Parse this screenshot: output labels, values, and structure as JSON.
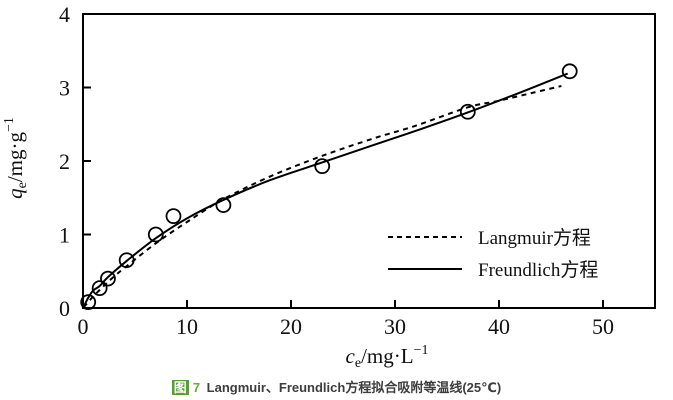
{
  "chart": {
    "xlabel": {
      "var": "c",
      "sub": "e",
      "unit": "/mg·L",
      "sup": "−1"
    },
    "ylabel": {
      "var": "q",
      "sub": "e",
      "unit": "/mg·g",
      "sup": "−1"
    }
  },
  "caption": {
    "fig_label": "图",
    "fig_num": "7",
    "text": " Langmuir、Freundlich方程拟合吸附等温线(25℃)",
    "highlight_color": "#55a02e"
  },
  "chart_data": {
    "type": "scatter",
    "title": "",
    "xlabel": "ce/mg·L−1",
    "ylabel": "qe/mg·g−1",
    "xlim": [
      0,
      55
    ],
    "ylim": [
      0,
      4
    ],
    "xticks": [
      0,
      10,
      20,
      30,
      40,
      50
    ],
    "yticks": [
      0,
      1,
      2,
      3,
      4
    ],
    "grid": false,
    "legend_position": "inside-right-lower",
    "point_color": "#000000",
    "line_color": "#000000",
    "points": [
      [
        0.5,
        0.08
      ],
      [
        1.6,
        0.27
      ],
      [
        2.4,
        0.4
      ],
      [
        4.2,
        0.65
      ],
      [
        7.0,
        1.0
      ],
      [
        8.7,
        1.25
      ],
      [
        13.5,
        1.4
      ],
      [
        23.0,
        1.93
      ],
      [
        37.0,
        2.67
      ],
      [
        46.8,
        3.22
      ]
    ],
    "series": [
      {
        "name": "Langmuir方程",
        "style": "dashed",
        "curve_points": [
          [
            0.05,
            0.01
          ],
          [
            0.5,
            0.08
          ],
          [
            1,
            0.16
          ],
          [
            2,
            0.3
          ],
          [
            3,
            0.43
          ],
          [
            4.2,
            0.57
          ],
          [
            7,
            0.88
          ],
          [
            10,
            1.17
          ],
          [
            13.5,
            1.48
          ],
          [
            18,
            1.79
          ],
          [
            23,
            2.07
          ],
          [
            28,
            2.31
          ],
          [
            32,
            2.48
          ],
          [
            37,
            2.73
          ],
          [
            40,
            2.82
          ],
          [
            43,
            2.92
          ],
          [
            46,
            3.02
          ]
        ]
      },
      {
        "name": "Freundlich方程",
        "style": "solid",
        "curve_points": [
          [
            0.05,
            0.01
          ],
          [
            0.5,
            0.14
          ],
          [
            1,
            0.24
          ],
          [
            1.6,
            0.3
          ],
          [
            2.4,
            0.42
          ],
          [
            4.2,
            0.64
          ],
          [
            7,
            0.95
          ],
          [
            10,
            1.22
          ],
          [
            13.5,
            1.47
          ],
          [
            18,
            1.74
          ],
          [
            23,
            1.98
          ],
          [
            28,
            2.22
          ],
          [
            32,
            2.41
          ],
          [
            37,
            2.66
          ],
          [
            42,
            2.93
          ],
          [
            46.6,
            3.19
          ]
        ]
      }
    ]
  }
}
